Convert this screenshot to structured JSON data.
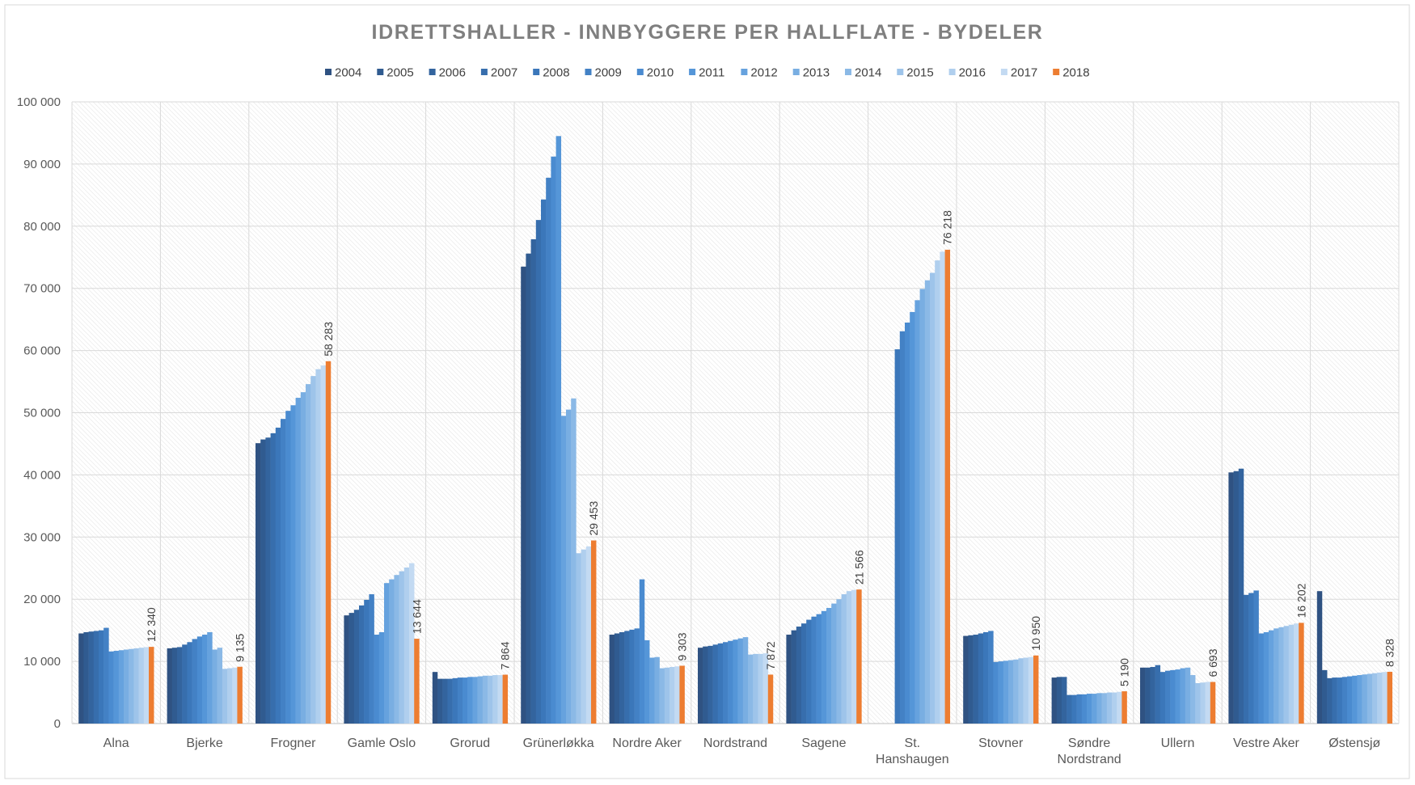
{
  "chart_data": {
    "type": "bar",
    "title": "IDRETTSHALLER - INNBYGGERE PER HALLFLATE - BYDELER",
    "xlabel": "",
    "ylabel": "",
    "ylim": [
      0,
      100000
    ],
    "yticks": [
      0,
      10000,
      20000,
      30000,
      40000,
      50000,
      60000,
      70000,
      80000,
      90000,
      100000
    ],
    "ytick_labels": [
      "0",
      "10 000",
      "20 000",
      "30 000",
      "40 000",
      "50 000",
      "60 000",
      "70 000",
      "80 000",
      "90 000",
      "100 000"
    ],
    "grid": true,
    "legend_position": "top",
    "categories": [
      "Alna",
      "Bjerke",
      "Frogner",
      "Gamle Oslo",
      "Grorud",
      "Grünerløkka",
      "Nordre Aker",
      "Nordstrand",
      "Sagene",
      "St. Hanshaugen",
      "Stovner",
      "Søndre Nordstrand",
      "Ullern",
      "Vestre Aker",
      "Østensjø"
    ],
    "series": [
      {
        "name": "2004",
        "color": "#2F5282",
        "values": [
          14500,
          12100,
          45100,
          17400,
          8300,
          73500,
          14300,
          12200,
          14300,
          null,
          14100,
          7400,
          9000,
          40400,
          21300
        ]
      },
      {
        "name": "2005",
        "color": "#305B90",
        "values": [
          14700,
          12200,
          45700,
          17800,
          7200,
          75600,
          14500,
          12400,
          15000,
          null,
          14200,
          7500,
          9000,
          40600,
          8600
        ]
      },
      {
        "name": "2006",
        "color": "#33649E",
        "values": [
          14800,
          12300,
          46000,
          18300,
          7200,
          77900,
          14700,
          12500,
          15600,
          null,
          14300,
          7500,
          9100,
          41000,
          7300
        ]
      },
      {
        "name": "2007",
        "color": "#376EAD",
        "values": [
          14900,
          12700,
          46700,
          19000,
          7200,
          81000,
          14900,
          12700,
          16100,
          null,
          14500,
          4600,
          9400,
          20700,
          7400
        ]
      },
      {
        "name": "2008",
        "color": "#3B77BA",
        "values": [
          15000,
          13100,
          47600,
          19900,
          7300,
          84300,
          15100,
          12900,
          16700,
          60200,
          14700,
          4600,
          8300,
          21000,
          7400
        ]
      },
      {
        "name": "2009",
        "color": "#4381C5",
        "values": [
          15400,
          13600,
          49000,
          20800,
          7400,
          87800,
          15300,
          13100,
          17200,
          63100,
          14900,
          4700,
          8500,
          21400,
          7500
        ]
      },
      {
        "name": "2010",
        "color": "#4A8BD0",
        "values": [
          11600,
          14000,
          50300,
          14300,
          7400,
          91200,
          23200,
          13300,
          17600,
          64500,
          9900,
          4700,
          8600,
          14500,
          7600
        ]
      },
      {
        "name": "2011",
        "color": "#5596D8",
        "values": [
          11700,
          14300,
          51200,
          14700,
          7500,
          94500,
          13400,
          13500,
          18100,
          66200,
          10000,
          4800,
          8700,
          14700,
          7700
        ]
      },
      {
        "name": "2012",
        "color": "#66A2DE",
        "values": [
          11800,
          14700,
          52400,
          22600,
          7500,
          49500,
          10600,
          13700,
          18600,
          68100,
          10100,
          4800,
          8900,
          15000,
          7800
        ]
      },
      {
        "name": "2013",
        "color": "#79AEE2",
        "values": [
          11900,
          11900,
          53300,
          23200,
          7600,
          50500,
          10700,
          13900,
          19300,
          69900,
          10200,
          4900,
          9000,
          15300,
          7900
        ]
      },
      {
        "name": "2014",
        "color": "#8BB9E6",
        "values": [
          12000,
          12200,
          54600,
          23900,
          7700,
          52300,
          8900,
          11100,
          20000,
          71300,
          10300,
          4900,
          7800,
          15500,
          8000
        ]
      },
      {
        "name": "2015",
        "color": "#9EC4EA",
        "values": [
          12100,
          8800,
          55900,
          24500,
          7700,
          27400,
          9000,
          11200,
          20800,
          72500,
          10500,
          5000,
          6500,
          15700,
          8100
        ]
      },
      {
        "name": "2016",
        "color": "#B0CFEE",
        "values": [
          12200,
          8900,
          57000,
          25100,
          7800,
          28000,
          9100,
          11200,
          21300,
          74500,
          10600,
          5000,
          6600,
          15900,
          8200
        ]
      },
      {
        "name": "2017",
        "color": "#C3DAF2",
        "values": [
          12300,
          9000,
          57600,
          25800,
          7800,
          28500,
          9200,
          11300,
          21500,
          75900,
          10700,
          5100,
          6700,
          16100,
          8300
        ]
      },
      {
        "name": "2018",
        "color": "#ED7D31",
        "values": [
          12340,
          9135,
          58283,
          13644,
          7864,
          29453,
          9303,
          7872,
          21566,
          76218,
          10950,
          5190,
          6693,
          16202,
          8328
        ]
      }
    ],
    "data_labels": {
      "series": "2018",
      "labels": [
        "12 340",
        "9 135",
        "58 283",
        "13 644",
        "7 864",
        "29 453",
        "9 303",
        "7 872",
        "21 566",
        "76 218",
        "10 950",
        "5 190",
        "6 693",
        "16 202",
        "8 328"
      ]
    }
  }
}
